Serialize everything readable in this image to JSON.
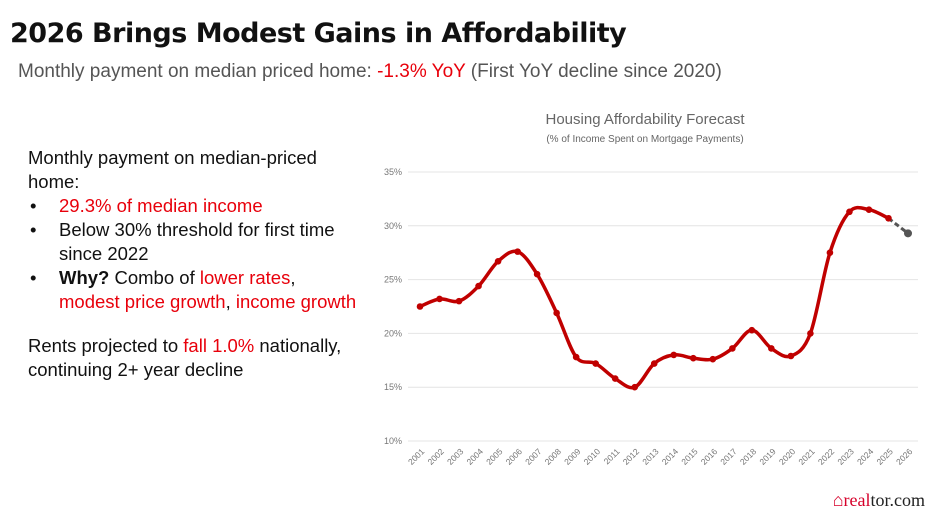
{
  "title": "2026 Brings Modest Gains in Affordability",
  "subtitle": {
    "prefix": "Monthly payment on median priced home: ",
    "highlight": "-1.3% YoY",
    "suffix": " (First YoY decline since 2020)"
  },
  "left": {
    "intro": "Monthly payment on median-priced home:",
    "bullets": [
      {
        "red": "29.3% of median income"
      },
      {
        "text": "Below 30% threshold for first time since 2022"
      },
      {
        "bold": "Why?",
        "text": " Combo of ",
        "red1": "lower rates",
        "sep1": ", ",
        "red2": "modest price growth",
        "sep2": ", ",
        "red3": "income growth"
      }
    ],
    "rents_prefix": "Rents projected to ",
    "rents_red": "fall 1.0%",
    "rents_suffix": " nationally, continuing 2+ year decline"
  },
  "logo": {
    "red": "real",
    "dark": "tor.com"
  },
  "colors": {
    "accent": "#e8000b",
    "line": "#c00000",
    "forecast": "#555555"
  },
  "chart_data": {
    "type": "line",
    "title": "Housing Affordability Forecast",
    "subtitle": "(% of Income Spent on Mortgage Payments)",
    "x": [
      "2001",
      "2002",
      "2003",
      "2004",
      "2005",
      "2006",
      "2007",
      "2008",
      "2009",
      "2010",
      "2011",
      "2012",
      "2013",
      "2014",
      "2015",
      "2016",
      "2017",
      "2018",
      "2019",
      "2020",
      "2021",
      "2022",
      "2023",
      "2024",
      "2025",
      "2026"
    ],
    "values": [
      22.5,
      23.2,
      23.0,
      24.4,
      26.7,
      27.6,
      25.5,
      21.9,
      17.8,
      17.2,
      15.8,
      15.0,
      17.2,
      18.0,
      17.7,
      17.6,
      18.6,
      20.3,
      18.6,
      17.9,
      20.0,
      27.5,
      31.3,
      31.5,
      30.7,
      29.3
    ],
    "forecast_from": "2025",
    "ylim": [
      10,
      35
    ],
    "yticks": [
      "10%",
      "15%",
      "20%",
      "25%",
      "30%",
      "35%"
    ],
    "grid": true
  }
}
